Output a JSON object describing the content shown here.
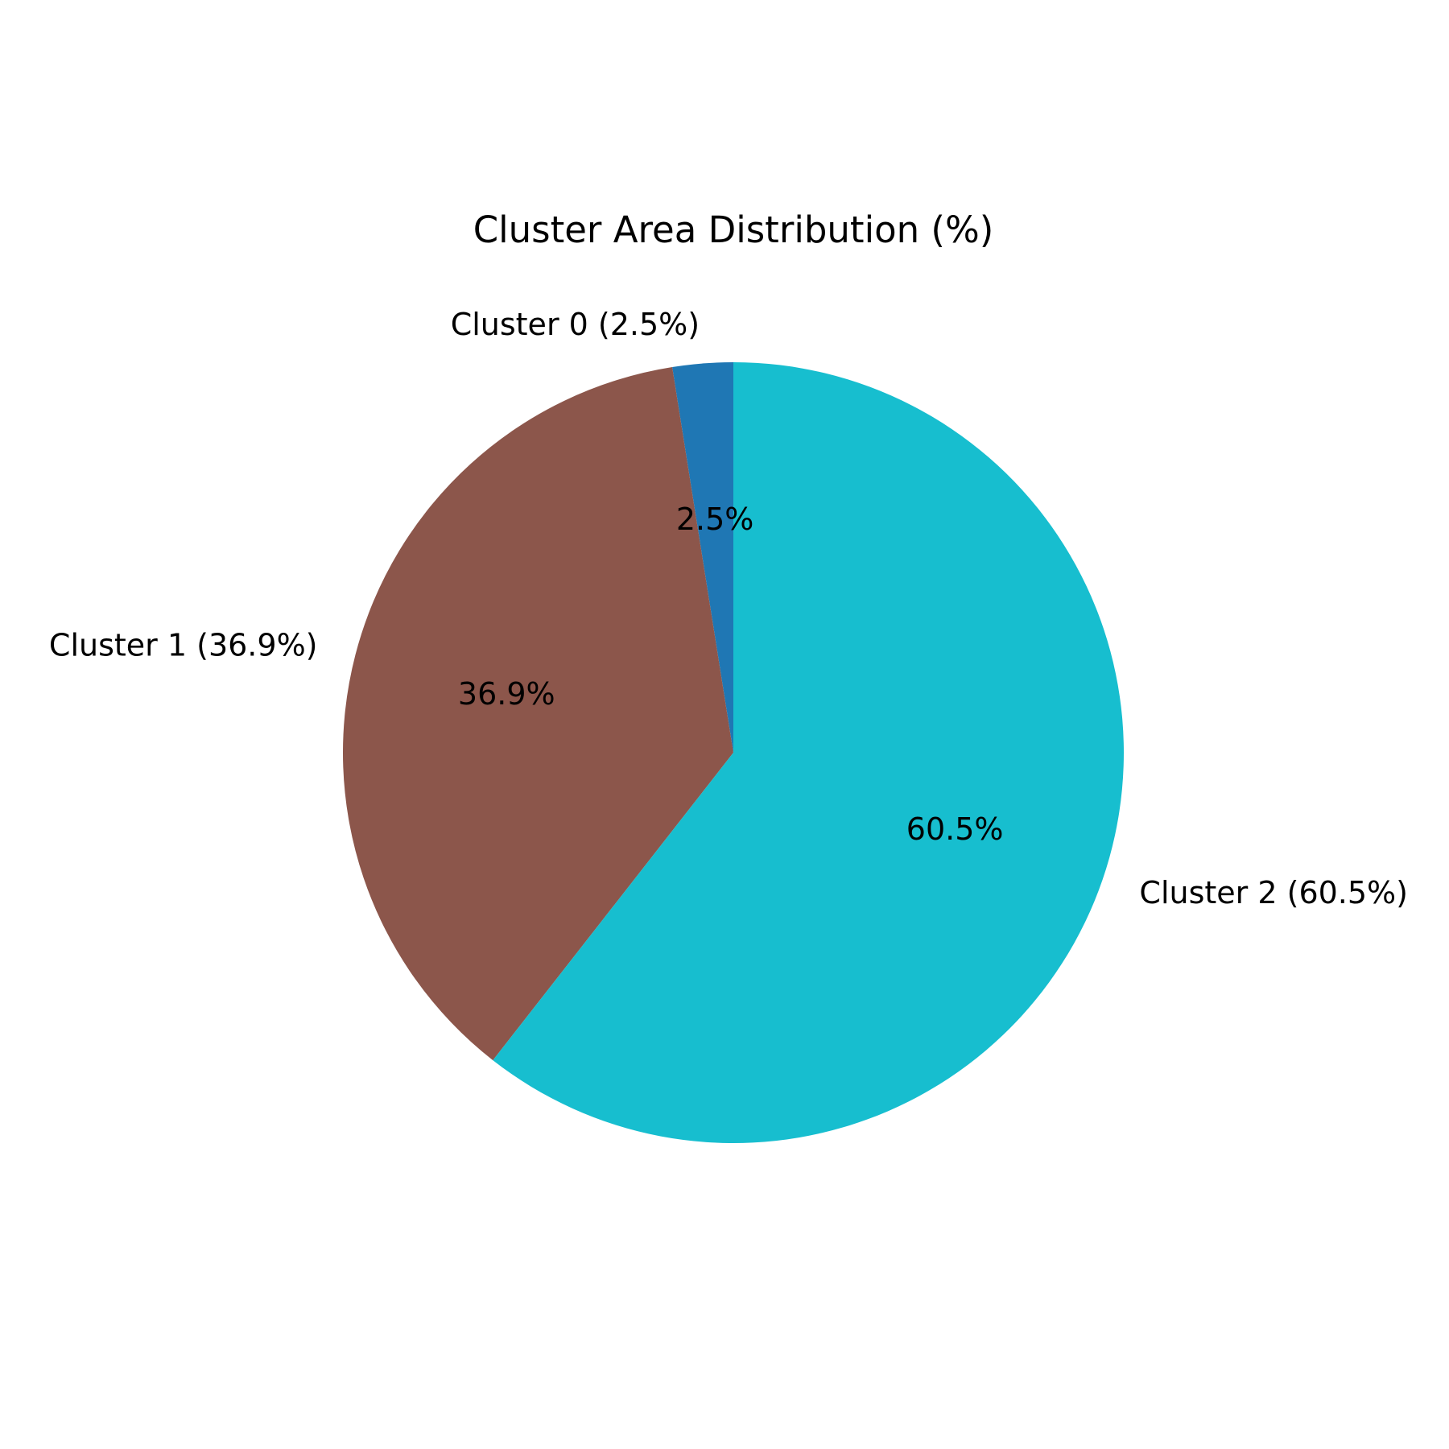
{
  "chart_data": {
    "type": "pie",
    "title": "Cluster Area Distribution (%)",
    "start_angle_deg": 90,
    "direction": "counterclockwise",
    "slices": [
      {
        "name": "Cluster 0",
        "label": "Cluster 0 (2.5%)",
        "value": 2.5,
        "pct_label": "2.5%",
        "color": "#1f77b4"
      },
      {
        "name": "Cluster 1",
        "label": "Cluster 1 (36.9%)",
        "value": 36.9,
        "pct_label": "36.9%",
        "color": "#8c564b"
      },
      {
        "name": "Cluster 2",
        "label": "Cluster 2 (60.5%)",
        "value": 60.5,
        "pct_label": "60.5%",
        "color": "#17becf"
      }
    ]
  }
}
